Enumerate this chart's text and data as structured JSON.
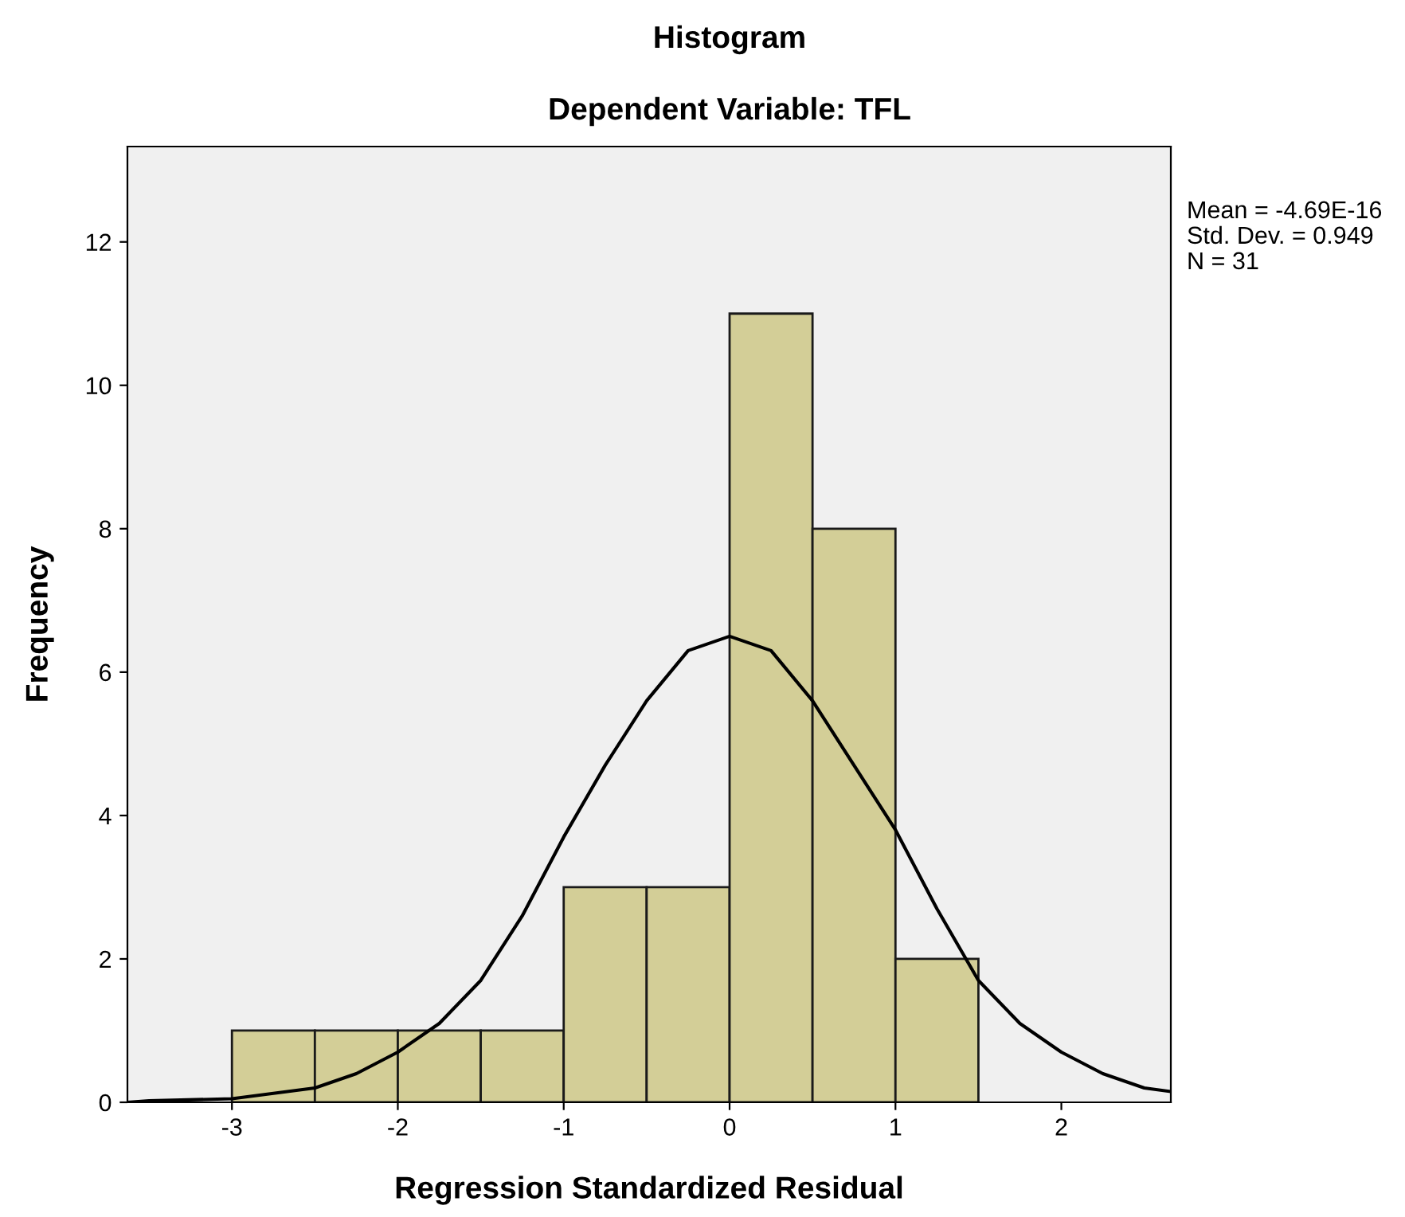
{
  "chart_data": {
    "type": "histogram",
    "title": "Histogram",
    "subtitle": "Dependent Variable: TFL",
    "xlabel": "Regression Standardized Residual",
    "ylabel": "Frequency",
    "bins": [
      -3,
      -2.5,
      -2,
      -1.5,
      -1,
      -0.5,
      0,
      0.5,
      1,
      1.5
    ],
    "values": [
      1,
      1,
      1,
      1,
      3,
      3,
      11,
      8,
      2
    ],
    "color": "#d3ce97",
    "series": [
      {
        "type": "line",
        "color": "#000000",
        "x": [
          -3.63,
          -3.5,
          -3,
          -2.5,
          -2.25,
          -2,
          -1.75,
          -1.5,
          -1.25,
          -1,
          -0.75,
          -0.5,
          -0.25,
          0,
          0.25,
          0.5,
          0.75,
          1,
          1.25,
          1.5,
          1.75,
          2,
          2.25,
          2.5,
          2.66
        ],
        "values": [
          0.0,
          0.02,
          0.05,
          0.2,
          0.4,
          0.7,
          1.1,
          1.7,
          2.6,
          3.7,
          4.7,
          5.6,
          6.3,
          6.5,
          6.3,
          5.6,
          4.7,
          3.8,
          2.7,
          1.7,
          1.1,
          0.7,
          0.4,
          0.2,
          0.15
        ]
      }
    ],
    "xlim": [
      -3.63,
      2.66
    ],
    "ylim": [
      0,
      13.33
    ],
    "xticks": [
      -3,
      -2,
      -1,
      0,
      1,
      2
    ],
    "yticks": [
      0,
      2,
      4,
      6,
      8,
      10,
      12
    ],
    "grid": false,
    "legend": false,
    "annotations": [
      "Mean = -4.69E-16",
      "Std. Dev. = 0.949",
      "N = 31"
    ]
  }
}
